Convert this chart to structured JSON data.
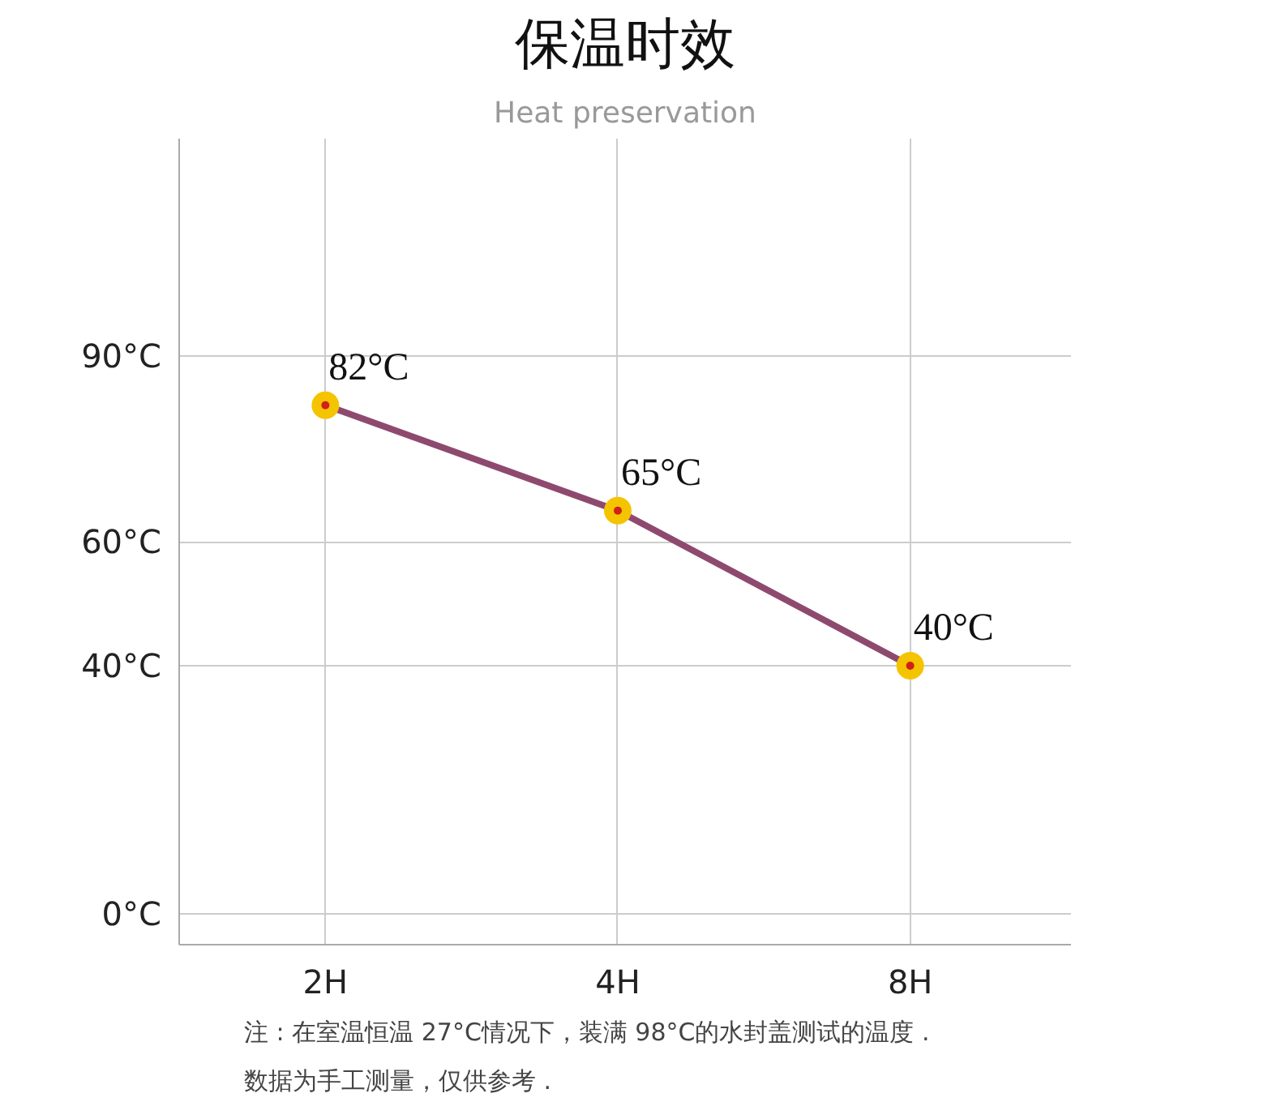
{
  "chart_data": {
    "type": "line",
    "title": "保温时效",
    "subtitle": "Heat preservation",
    "categories": [
      "2H",
      "4H",
      "8H"
    ],
    "ylim": [
      -5,
      125
    ],
    "yticks": [
      {
        "value": 0,
        "label": "0°C"
      },
      {
        "value": 40,
        "label": "40°C"
      },
      {
        "value": 60,
        "label": "60°C"
      },
      {
        "value": 90,
        "label": "90°C"
      }
    ],
    "grid": true,
    "marker": "circle",
    "line_style": "solid",
    "series": [
      {
        "color": "#8e4a6e",
        "values": [
          82,
          65,
          40
        ],
        "value_labels": [
          "82°C",
          "65°C",
          "40°C"
        ]
      }
    ],
    "annotations": [
      "注 : 在室温恒温 27°C情况下，装满 98°C的水封盖测试的温度 .",
      "数据为手工测量，仅供参考 ."
    ]
  }
}
